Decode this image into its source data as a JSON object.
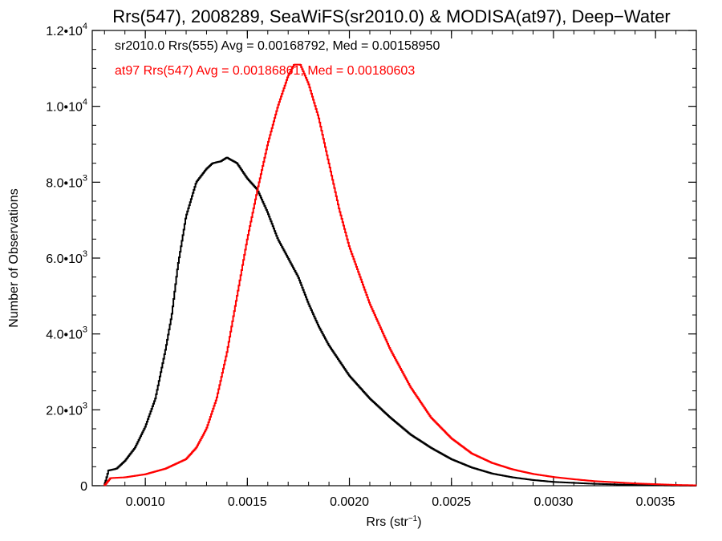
{
  "chart_data": {
    "type": "line",
    "title": "Rrs(547), 2008289, SeaWiFS(sr2010.0) & MODISA(at97), Deep−Water",
    "xlabel": "Rrs (str",
    "xlabel_sup": "−1",
    "xlabel_end": ")",
    "ylabel": "Number of Observations",
    "xlim": [
      0.00074,
      0.0037
    ],
    "ylim": [
      0,
      12000
    ],
    "x_ticks": [
      {
        "value": 0.001,
        "label": "0.0010"
      },
      {
        "value": 0.0015,
        "label": "0.0015"
      },
      {
        "value": 0.002,
        "label": "0.0020"
      },
      {
        "value": 0.0025,
        "label": "0.0025"
      },
      {
        "value": 0.003,
        "label": "0.0030"
      },
      {
        "value": 0.0035,
        "label": "0.0035"
      }
    ],
    "y_ticks": [
      {
        "value": 0,
        "base": "0",
        "exp": ""
      },
      {
        "value": 2000,
        "base": "2.0•10",
        "exp": "3"
      },
      {
        "value": 4000,
        "base": "4.0•10",
        "exp": "3"
      },
      {
        "value": 6000,
        "base": "6.0•10",
        "exp": "3"
      },
      {
        "value": 8000,
        "base": "8.0•10",
        "exp": "3"
      },
      {
        "value": 10000,
        "base": "1.0•10",
        "exp": "4"
      },
      {
        "value": 12000,
        "base": "1.2•10",
        "exp": "4"
      }
    ],
    "legend_placement": "top-left",
    "series": [
      {
        "legend": "sr2010.0 Rrs(555) Avg = 0.00168792, Med = 0.00158950",
        "color": "#000000",
        "x": [
          0.0008,
          0.00082,
          0.00086,
          0.0009,
          0.00095,
          0.001,
          0.00105,
          0.0011,
          0.00113,
          0.00116,
          0.0012,
          0.00125,
          0.0013,
          0.00133,
          0.00137,
          0.0014,
          0.00145,
          0.0015,
          0.00155,
          0.0016,
          0.00165,
          0.0017,
          0.00175,
          0.0018,
          0.00185,
          0.0019,
          0.002,
          0.0021,
          0.0022,
          0.0023,
          0.0024,
          0.0025,
          0.0026,
          0.0027,
          0.0028,
          0.0029,
          0.003,
          0.0032,
          0.0034,
          0.0036,
          0.0037
        ],
        "y": [
          0,
          400,
          450,
          650,
          1000,
          1550,
          2300,
          3600,
          4500,
          5800,
          7100,
          8000,
          8350,
          8500,
          8550,
          8650,
          8500,
          8100,
          7800,
          7200,
          6500,
          6000,
          5500,
          4800,
          4200,
          3700,
          2900,
          2300,
          1800,
          1350,
          1000,
          700,
          480,
          320,
          220,
          150,
          100,
          50,
          20,
          5,
          0
        ]
      },
      {
        "legend": "at97 Rrs(547) Avg = 0.00186861, Med = 0.00180603",
        "color": "#ff0000",
        "x": [
          0.0008,
          0.00083,
          0.0009,
          0.001,
          0.0011,
          0.0012,
          0.00125,
          0.0013,
          0.00135,
          0.0014,
          0.00145,
          0.0015,
          0.00155,
          0.0016,
          0.00165,
          0.0017,
          0.00173,
          0.00176,
          0.0018,
          0.00185,
          0.0019,
          0.00195,
          0.002,
          0.0021,
          0.0022,
          0.0023,
          0.0024,
          0.0025,
          0.0026,
          0.0027,
          0.0028,
          0.0029,
          0.003,
          0.0031,
          0.0032,
          0.0033,
          0.0034,
          0.0035,
          0.0036,
          0.0037
        ],
        "y": [
          0,
          200,
          220,
          300,
          450,
          700,
          1000,
          1500,
          2300,
          3500,
          5000,
          6500,
          7800,
          9000,
          10000,
          10800,
          11100,
          11100,
          10600,
          9700,
          8500,
          7300,
          6300,
          4800,
          3600,
          2600,
          1800,
          1250,
          850,
          600,
          430,
          310,
          230,
          170,
          120,
          90,
          60,
          40,
          20,
          10
        ]
      }
    ]
  }
}
